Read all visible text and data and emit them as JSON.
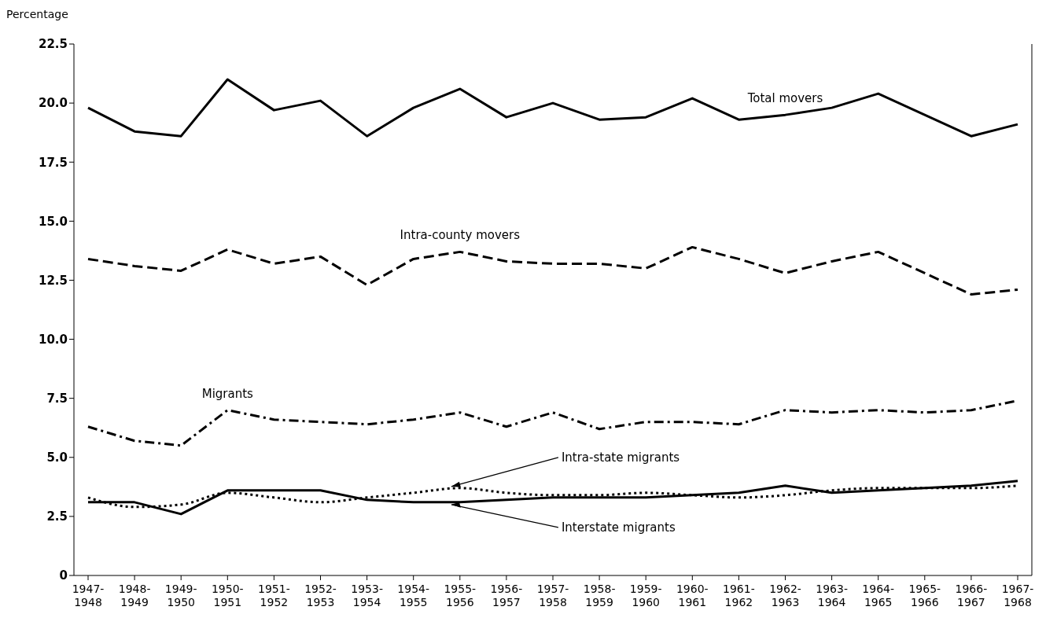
{
  "chart_data": {
    "type": "line",
    "ylabel": "Percentage",
    "categories": [
      "1947-1948",
      "1948-1949",
      "1949-1950",
      "1950-1951",
      "1951-1952",
      "1952-1953",
      "1953-1954",
      "1954-1955",
      "1955-1956",
      "1956-1957",
      "1957-1958",
      "1958-1959",
      "1959-1960",
      "1960-1961",
      "1961-1962",
      "1962-1963",
      "1963-1964",
      "1964-1965",
      "1965-1966",
      "1966-1967",
      "1967-1968"
    ],
    "series": [
      {
        "name": "Total movers",
        "color": "#000000",
        "line_style": "solid",
        "values": [
          19.8,
          18.8,
          18.6,
          21.0,
          19.7,
          20.1,
          18.6,
          19.8,
          20.6,
          19.4,
          20.0,
          19.3,
          19.4,
          20.2,
          19.3,
          19.5,
          19.8,
          20.4,
          19.5,
          18.6,
          19.1
        ]
      },
      {
        "name": "Intra-county movers",
        "color": "#000000",
        "line_style": "dashed",
        "values": [
          13.4,
          13.1,
          12.9,
          13.8,
          13.2,
          13.5,
          12.3,
          13.4,
          13.7,
          13.3,
          13.2,
          13.2,
          13.0,
          13.9,
          13.4,
          12.8,
          13.3,
          13.7,
          12.8,
          11.9,
          12.1
        ]
      },
      {
        "name": "Migrants",
        "color": "#000000",
        "line_style": "dashdot",
        "values": [
          6.3,
          5.7,
          5.5,
          7.0,
          6.6,
          6.5,
          6.4,
          6.6,
          6.9,
          6.3,
          6.9,
          6.2,
          6.5,
          6.5,
          6.4,
          7.0,
          6.9,
          7.0,
          6.9,
          7.0,
          7.4
        ]
      },
      {
        "name": "Intra-state migrants",
        "color": "#000000",
        "line_style": "dotted",
        "values": [
          3.3,
          2.9,
          3.0,
          3.5,
          3.3,
          3.1,
          3.3,
          3.5,
          3.7,
          3.5,
          3.4,
          3.4,
          3.5,
          3.4,
          3.3,
          3.4,
          3.6,
          3.7,
          3.7,
          3.7,
          3.8
        ]
      },
      {
        "name": "Interstate migrants",
        "color": "#000000",
        "line_style": "solid",
        "values": [
          3.1,
          3.1,
          2.6,
          3.6,
          3.6,
          3.6,
          3.2,
          3.1,
          3.1,
          3.2,
          3.3,
          3.3,
          3.3,
          3.4,
          3.5,
          3.8,
          3.5,
          3.6,
          3.7,
          3.8,
          4.0
        ]
      }
    ],
    "ylim": [
      0,
      22.5
    ],
    "yticks": [
      0,
      {
        "value": 2.5,
        "label": "2.5"
      },
      {
        "value": 5,
        "label": "5.0"
      },
      {
        "value": 7.5,
        "label": "7.5"
      },
      {
        "value": 10,
        "label": "10.0"
      },
      {
        "value": 12.5,
        "label": "12.5"
      },
      {
        "value": 15,
        "label": "15.0"
      },
      {
        "value": 17.5,
        "label": "17.5"
      },
      {
        "value": 20,
        "label": "20.0"
      },
      {
        "value": 22.5,
        "label": "22.5"
      }
    ],
    "grid": false,
    "legend": false,
    "marker": "none"
  }
}
